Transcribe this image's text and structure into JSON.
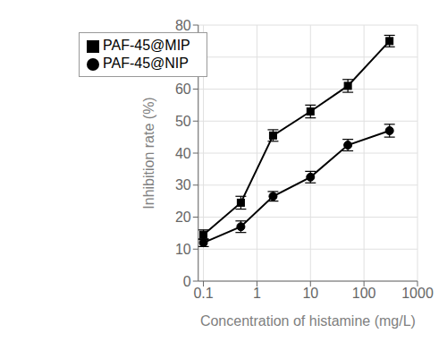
{
  "chart_data": {
    "type": "line",
    "x_label": "Concentration of histamine (mg/L)",
    "y_label": "Inhibition rate (%)",
    "x": [
      0.1,
      0.5,
      2,
      10,
      50,
      300
    ],
    "series": [
      {
        "name": "PAF-45@MIP",
        "color": "#000000",
        "marker": "square",
        "values": [
          14.5,
          24.5,
          45.5,
          53.0,
          61.0,
          75.0
        ],
        "yerr": [
          1.5,
          2.0,
          1.8,
          2.0,
          2.0,
          1.8
        ]
      },
      {
        "name": "PAF-45@NIP",
        "color": "#000000",
        "marker": "circle",
        "values": [
          12.0,
          17.0,
          26.5,
          32.5,
          42.5,
          47.0
        ],
        "yerr": [
          1.2,
          1.8,
          1.5,
          1.8,
          1.8,
          2.0
        ]
      }
    ],
    "log": "x",
    "xlim": [
      0.08,
      1000
    ],
    "ylim": [
      0,
      80
    ],
    "xticks": [
      0.1,
      1,
      10,
      100,
      1000
    ],
    "yticks": [
      0,
      10,
      20,
      30,
      40,
      50,
      60,
      70,
      80
    ],
    "grid": true,
    "legend": "upper left"
  }
}
